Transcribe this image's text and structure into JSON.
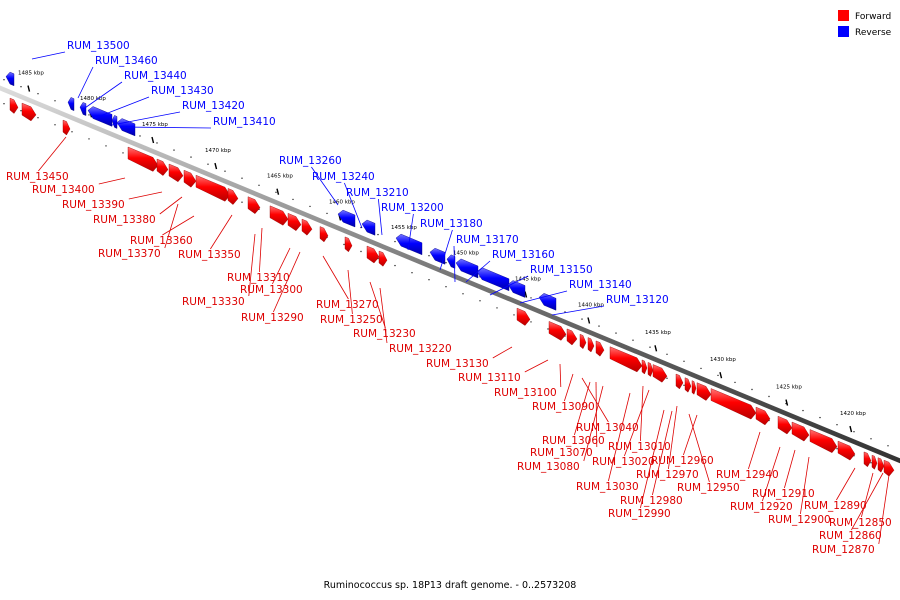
{
  "legend": [
    {
      "label": "Forward",
      "color": "#ff0000"
    },
    {
      "label": "Reverse",
      "color": "#0000ff"
    }
  ],
  "caption": "Ruminococcus sp. 18P13 draft genome. - 0..2573208",
  "ticks": [
    "1485 kbp",
    "1480 kbp",
    "1475 kbp",
    "1470 kbp",
    "1465 kbp",
    "1460 kbp",
    "1455 kbp",
    "1450 kbp",
    "1445 kbp",
    "1440 kbp",
    "1435 kbp",
    "1430 kbp",
    "1425 kbp",
    "1420 kbp"
  ],
  "reverse_genes": [
    "RUM_13500",
    "RUM_13460",
    "RUM_13440",
    "RUM_13430",
    "RUM_13420",
    "RUM_13410",
    "RUM_13260",
    "RUM_13240",
    "RUM_13210",
    "RUM_13200",
    "RUM_13180",
    "RUM_13170",
    "RUM_13160",
    "RUM_13150",
    "RUM_13140",
    "RUM_13120"
  ],
  "forward_genes": [
    "RUM_13450",
    "RUM_13400",
    "RUM_13390",
    "RUM_13380",
    "RUM_13360",
    "RUM_13370",
    "RUM_13350",
    "RUM_13310",
    "RUM_13300",
    "RUM_13330",
    "RUM_13290",
    "RUM_13270",
    "RUM_13250",
    "RUM_13230",
    "RUM_13220",
    "RUM_13130",
    "RUM_13110",
    "RUM_13100",
    "RUM_13090",
    "RUM_13040",
    "RUM_13060",
    "RUM_13010",
    "RUM_13070",
    "RUM_13020",
    "RUM_12960",
    "RUM_13080",
    "RUM_12970",
    "RUM_12940",
    "RUM_13030",
    "RUM_12950",
    "RUM_12980",
    "RUM_12910",
    "RUM_12920",
    "RUM_12990",
    "RUM_12900",
    "RUM_12890",
    "RUM_12850",
    "RUM_12860",
    "RUM_12870"
  ]
}
